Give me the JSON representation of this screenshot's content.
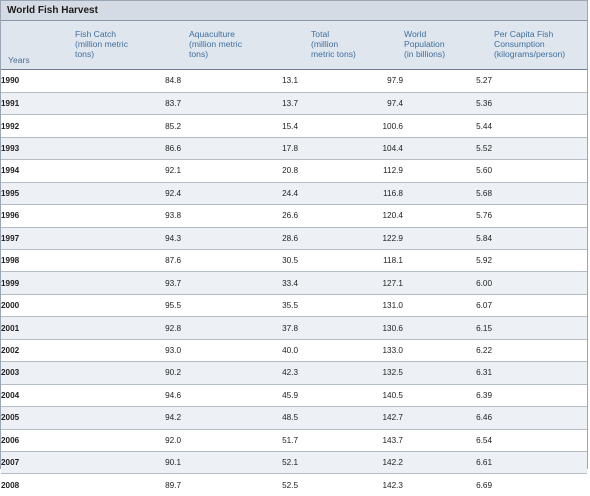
{
  "title": "World Fish Harvest",
  "headers": {
    "years": "Years",
    "fish_catch": [
      "Fish Catch",
      "(million metric",
      "tons)"
    ],
    "aquaculture": [
      "Aquaculture",
      "(million metric",
      "tons)"
    ],
    "total": [
      "Total",
      "(million",
      "metric tons)"
    ],
    "population": [
      "World",
      "Population",
      "(in billions)"
    ],
    "per_capita": [
      "Per Capita Fish",
      "Consumption",
      "(kilograms/person)"
    ]
  },
  "rows": [
    {
      "year": "1990",
      "fish": "84.8",
      "aqua": "13.1",
      "total": "97.9",
      "pop": "5.27",
      "per_capita": ""
    },
    {
      "year": "1991",
      "fish": "83.7",
      "aqua": "13.7",
      "total": "97.4",
      "pop": "5.36",
      "per_capita": ""
    },
    {
      "year": "1992",
      "fish": "85.2",
      "aqua": "15.4",
      "total": "100.6",
      "pop": "5.44",
      "per_capita": ""
    },
    {
      "year": "1993",
      "fish": "86.6",
      "aqua": "17.8",
      "total": "104.4",
      "pop": "5.52",
      "per_capita": ""
    },
    {
      "year": "1994",
      "fish": "92.1",
      "aqua": "20.8",
      "total": "112.9",
      "pop": "5.60",
      "per_capita": ""
    },
    {
      "year": "1995",
      "fish": "92.4",
      "aqua": "24.4",
      "total": "116.8",
      "pop": "5.68",
      "per_capita": ""
    },
    {
      "year": "1996",
      "fish": "93.8",
      "aqua": "26.6",
      "total": "120.4",
      "pop": "5.76",
      "per_capita": ""
    },
    {
      "year": "1997",
      "fish": "94.3",
      "aqua": "28.6",
      "total": "122.9",
      "pop": "5.84",
      "per_capita": ""
    },
    {
      "year": "1998",
      "fish": "87.6",
      "aqua": "30.5",
      "total": "118.1",
      "pop": "5.92",
      "per_capita": ""
    },
    {
      "year": "1999",
      "fish": "93.7",
      "aqua": "33.4",
      "total": "127.1",
      "pop": "6.00",
      "per_capita": ""
    },
    {
      "year": "2000",
      "fish": "95.5",
      "aqua": "35.5",
      "total": "131.0",
      "pop": "6.07",
      "per_capita": ""
    },
    {
      "year": "2001",
      "fish": "92.8",
      "aqua": "37.8",
      "total": "130.6",
      "pop": "6.15",
      "per_capita": ""
    },
    {
      "year": "2002",
      "fish": "93.0",
      "aqua": "40.0",
      "total": "133.0",
      "pop": "6.22",
      "per_capita": ""
    },
    {
      "year": "2003",
      "fish": "90.2",
      "aqua": "42.3",
      "total": "132.5",
      "pop": "6.31",
      "per_capita": ""
    },
    {
      "year": "2004",
      "fish": "94.6",
      "aqua": "45.9",
      "total": "140.5",
      "pop": "6.39",
      "per_capita": ""
    },
    {
      "year": "2005",
      "fish": "94.2",
      "aqua": "48.5",
      "total": "142.7",
      "pop": "6.46",
      "per_capita": ""
    },
    {
      "year": "2006",
      "fish": "92.0",
      "aqua": "51.7",
      "total": "143.7",
      "pop": "6.54",
      "per_capita": ""
    },
    {
      "year": "2007",
      "fish": "90.1",
      "aqua": "52.1",
      "total": "142.2",
      "pop": "6.61",
      "per_capita": ""
    },
    {
      "year": "2008",
      "fish": "89.7",
      "aqua": "52.5",
      "total": "142.3",
      "pop": "6.69",
      "per_capita": ""
    }
  ]
}
